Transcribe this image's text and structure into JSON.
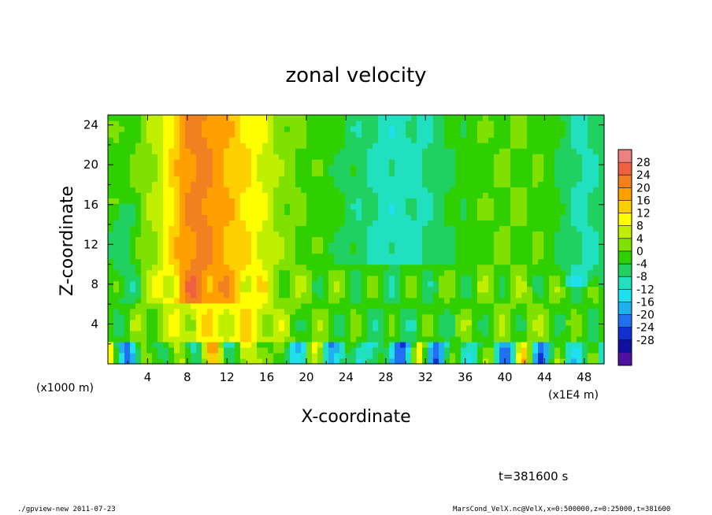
{
  "chart_data": {
    "type": "heatmap",
    "title": "zonal velocity",
    "xlabel": "X-coordinate",
    "ylabel": "Z-coordinate",
    "x_unit_label": "(x1000 m)",
    "x_scale_label": "(x1E4 m)",
    "xlim": [
      0,
      50
    ],
    "ylim": [
      0,
      25
    ],
    "xticks": [
      4,
      8,
      12,
      16,
      20,
      24,
      28,
      32,
      36,
      40,
      44,
      48
    ],
    "yticks": [
      4,
      8,
      12,
      16,
      20,
      24
    ],
    "colorbar_ticks": [
      28,
      24,
      20,
      16,
      12,
      8,
      4,
      0,
      -4,
      -8,
      -12,
      -16,
      -20,
      -24,
      -28
    ],
    "colorbar_colors": [
      "#f08080",
      "#f06040",
      "#f08020",
      "#ffa000",
      "#ffd000",
      "#ffff00",
      "#c0f000",
      "#80e000",
      "#30d000",
      "#20d060",
      "#20e0c0",
      "#20e0f0",
      "#20b0f0",
      "#2070f0",
      "#1030d0",
      "#1010a0",
      "#5010a0"
    ],
    "timestamp": "t=381600 s",
    "footer_left": "./gpview-new   2011-07-23",
    "footer_right": "MarsCond_VelX.nc@VelX,x=0:500000,z=0:25000,t=381600"
  }
}
